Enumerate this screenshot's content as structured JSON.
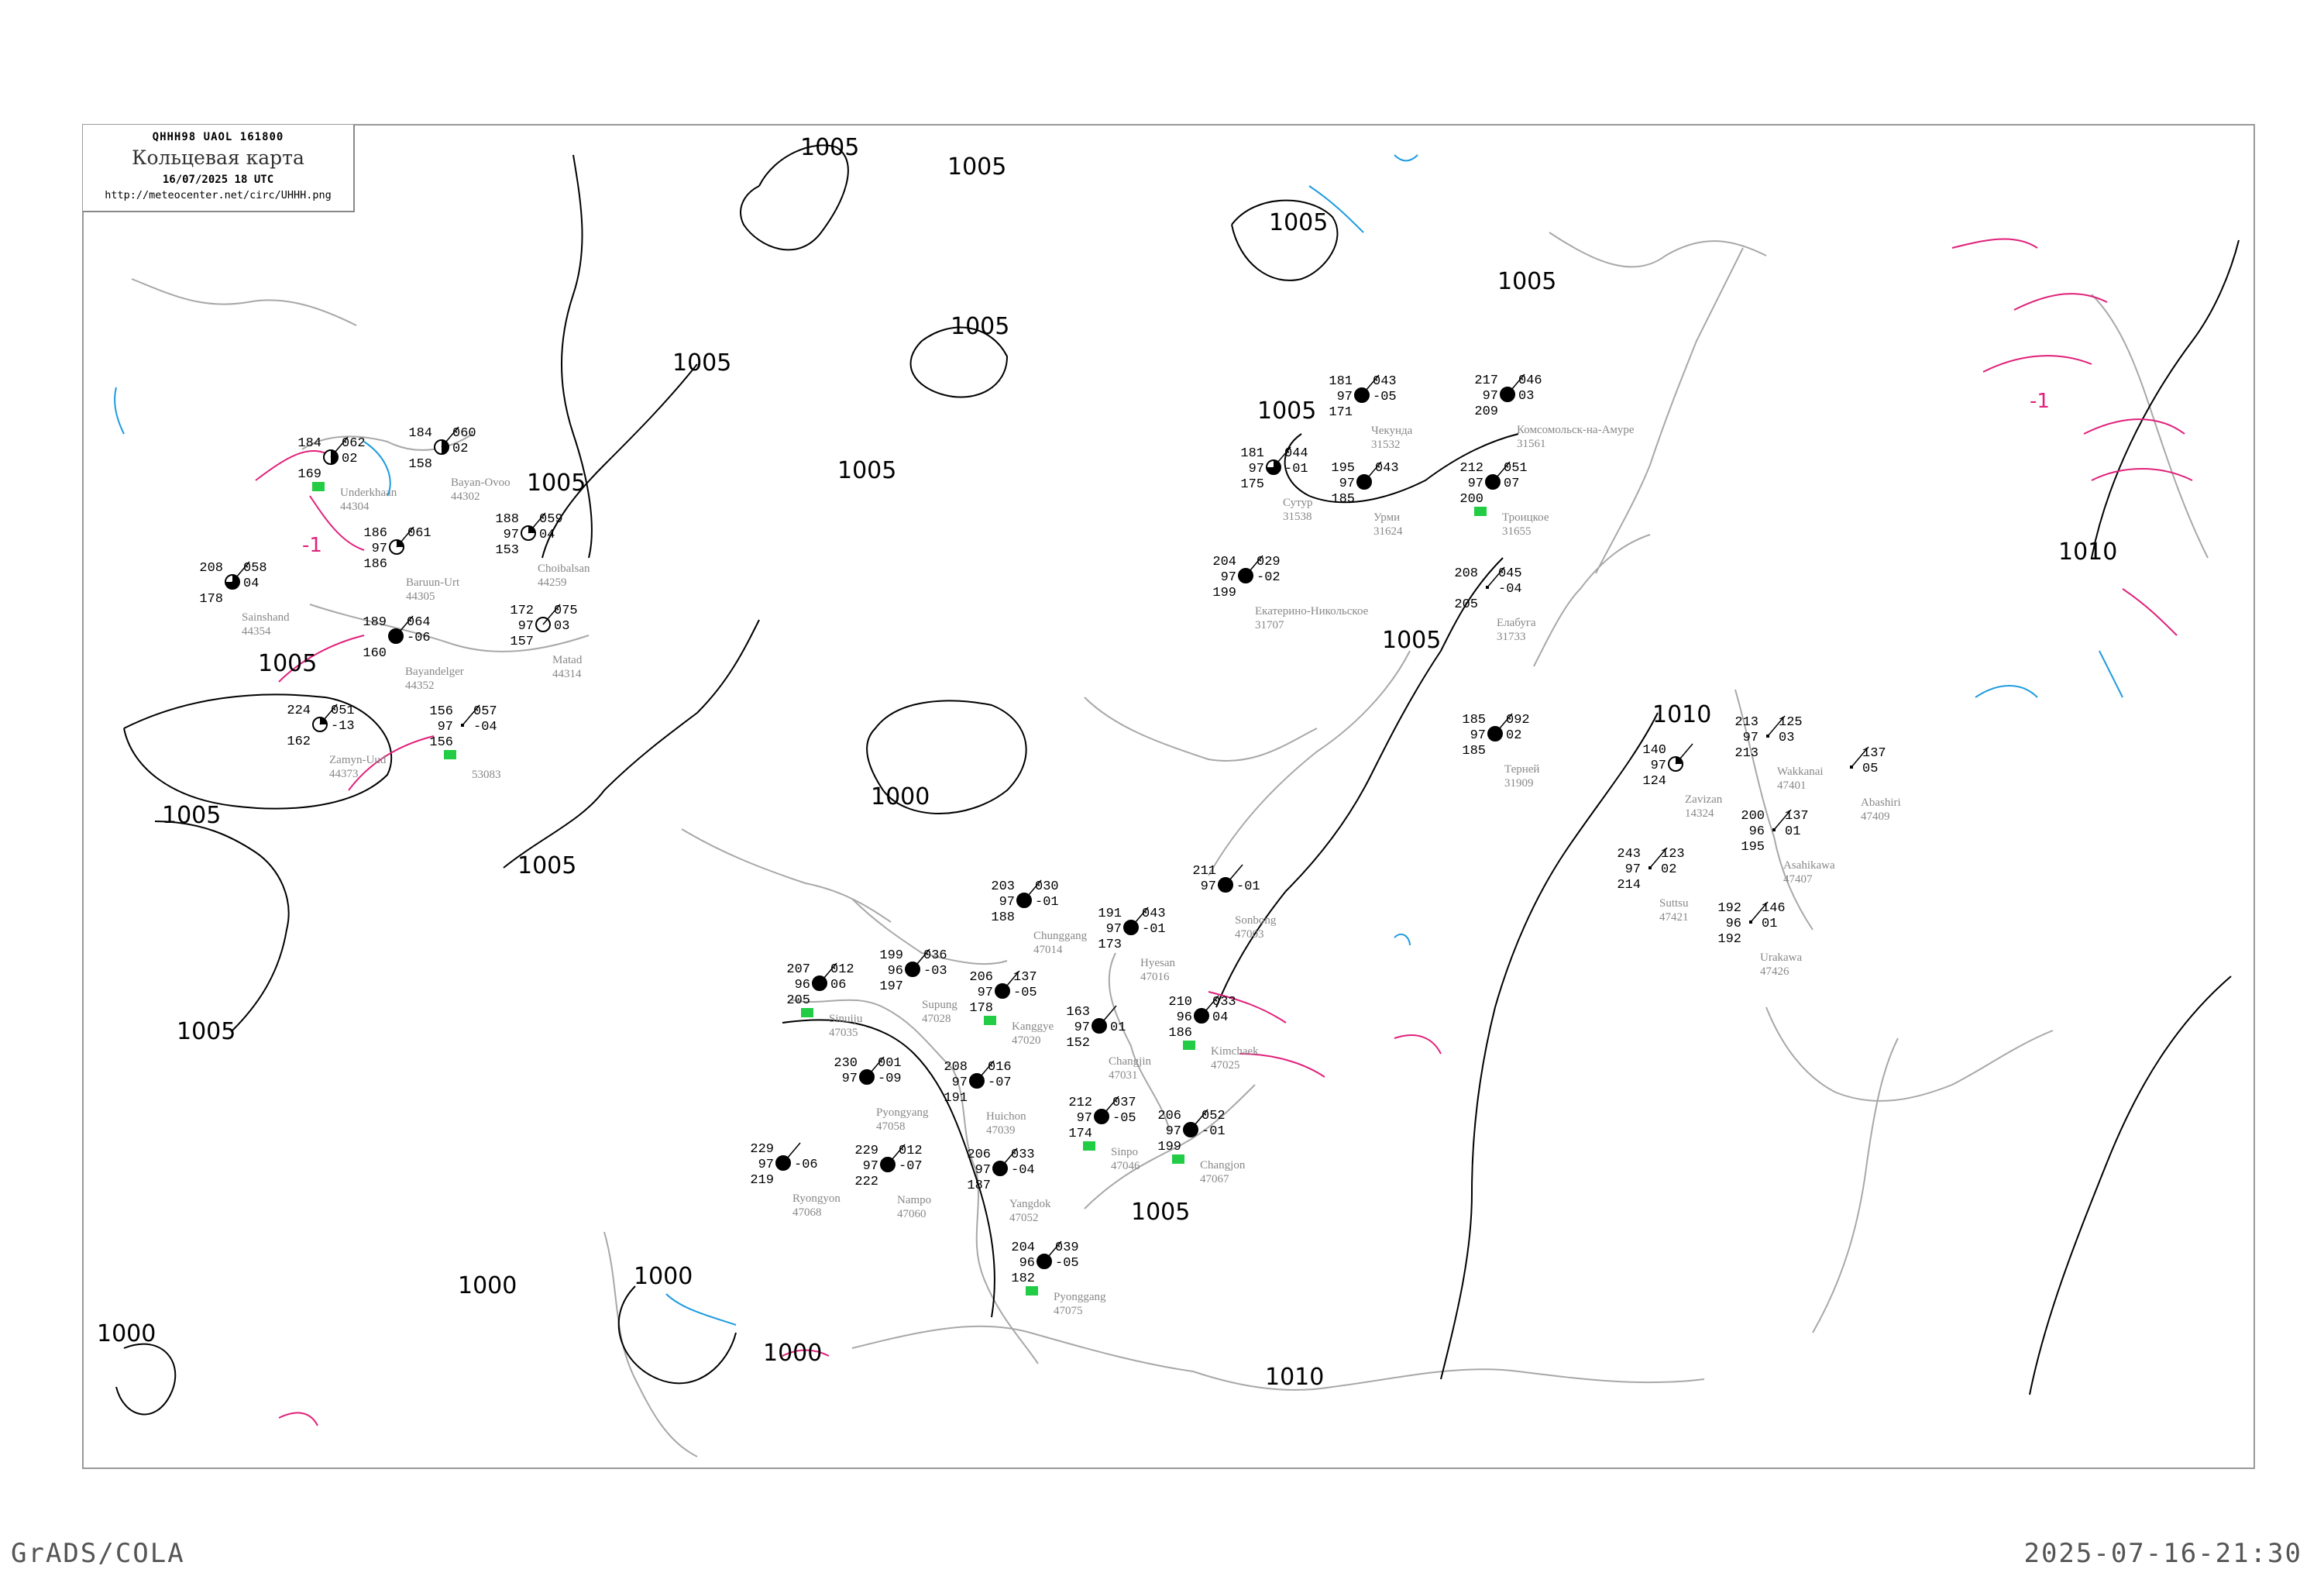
{
  "header": {
    "bulletin_code": "QHHH98   UAOL   161800",
    "title": "Кольцевая карта",
    "datetime": "16/07/2025 18 UTC",
    "url": "http://meteocenter.net/circ/UHHH.png"
  },
  "footer": {
    "software": "GrADS/COLA",
    "generated": "2025-07-16-21:30"
  },
  "colors": {
    "isobar": "#000000",
    "coastline": "#a0a0a0",
    "warm_isotherm": "#e0207a",
    "cold_isotherm": "#1e9be0",
    "precip_marker": "#22cc44",
    "fog_marker": "#ffff80"
  },
  "isobars": {
    "labels": [
      "1005",
      "1005",
      "1005",
      "1005",
      "1005",
      "1005",
      "1005",
      "1005",
      "1005",
      "1005",
      "1005",
      "1005",
      "1005",
      "1005",
      "1005",
      "1000",
      "1000",
      "1000",
      "1000",
      "1000",
      "1010",
      "1010",
      "1010"
    ]
  },
  "isotherm_labels": [
    "-1",
    "-1"
  ],
  "stations": [
    {
      "name": "Chunggang",
      "id": "47014",
      "t": "203",
      "vis": "97",
      "td": "188",
      "pres": "030",
      "tend": "-01",
      "cloud": 1,
      "precip": false
    },
    {
      "name": "Hyesan",
      "id": "47016",
      "t": "191",
      "vis": "97",
      "td": "173",
      "pres": "043",
      "tend": "-01",
      "cloud": 1,
      "precip": false
    },
    {
      "name": "Kanggye",
      "id": "47020",
      "t": "206",
      "vis": "97",
      "td": "178",
      "pres": "137",
      "tend": "-05",
      "cloud": 1,
      "precip": true
    },
    {
      "name": "Supung",
      "id": "47028",
      "t": "199",
      "vis": "96",
      "td": "197",
      "pres": "036",
      "tend": "-03",
      "cloud": 1,
      "precip": false
    },
    {
      "name": "Sinuiju",
      "id": "47035",
      "t": "207",
      "vis": "96",
      "td": "205",
      "pres": "012",
      "tend": "06",
      "cloud": 1,
      "precip": true
    },
    {
      "name": "Huichon",
      "id": "47039",
      "t": "208",
      "vis": "97",
      "td": "191",
      "pres": "016",
      "tend": "-07",
      "cloud": 1,
      "precip": false
    },
    {
      "name": "Changjin",
      "id": "47031",
      "t": "163",
      "vis": "97",
      "td": "152",
      "pres": "",
      "tend": "01",
      "cloud": 1,
      "precip": false
    },
    {
      "name": "Kimchaek",
      "id": "47025",
      "t": "210",
      "vis": "96",
      "td": "186",
      "pres": "033",
      "tend": "04",
      "cloud": 1,
      "precip": true
    },
    {
      "name": "Sinpo",
      "id": "47046",
      "t": "212",
      "vis": "97",
      "td": "174",
      "pres": "037",
      "tend": "-05",
      "cloud": 1,
      "precip": true
    },
    {
      "name": "Pyongyang",
      "id": "47058",
      "t": "230",
      "vis": "97",
      "td": "",
      "pres": "001",
      "tend": "-09",
      "cloud": 1,
      "precip": false
    },
    {
      "name": "Yangdok",
      "id": "47052",
      "t": "206",
      "vis": "97",
      "td": "187",
      "pres": "033",
      "tend": "-04",
      "cloud": 1,
      "precip": false
    },
    {
      "name": "Nampo",
      "id": "47060",
      "t": "229",
      "vis": "97",
      "td": "222",
      "pres": "012",
      "tend": "-07",
      "cloud": 1,
      "precip": false
    },
    {
      "name": "Ryongyon",
      "id": "47068",
      "t": "229",
      "vis": "97",
      "td": "219",
      "pres": "",
      "tend": "-06",
      "cloud": 1,
      "precip": false
    },
    {
      "name": "Pyonggang",
      "id": "47075",
      "t": "204",
      "vis": "96",
      "td": "182",
      "pres": "039",
      "tend": "-05",
      "cloud": 1,
      "precip": true
    },
    {
      "name": "Changjon",
      "id": "47067",
      "t": "206",
      "vis": "97",
      "td": "199",
      "pres": "052",
      "tend": "-01",
      "cloud": 1,
      "precip": true
    },
    {
      "name": "Sonbong",
      "id": "47003",
      "t": "211",
      "vis": "97",
      "td": "",
      "pres": "",
      "tend": "-01",
      "cloud": 1,
      "precip": false
    },
    {
      "name": "Чекунда",
      "id": "31532",
      "t": "181",
      "vis": "97",
      "td": "171",
      "pres": "043",
      "tend": "-05",
      "cloud": 1,
      "precip": false
    },
    {
      "name": "Сутур",
      "id": "31538",
      "t": "181",
      "vis": "97",
      "td": "175",
      "pres": "044",
      "tend": "-01",
      "cloud": 0.75,
      "precip": false
    },
    {
      "name": "Урми",
      "id": "31624",
      "t": "195",
      "vis": "97",
      "td": "185",
      "pres": "043",
      "tend": "",
      "cloud": 1,
      "precip": false
    },
    {
      "name": "Троицкое",
      "id": "31655",
      "t": "212",
      "vis": "97",
      "td": "200",
      "pres": "051",
      "tend": "07",
      "cloud": 1,
      "precip": true
    },
    {
      "name": "Екатерино-Никольское",
      "id": "31707",
      "t": "204",
      "vis": "97",
      "td": "199",
      "pres": "029",
      "tend": "-02",
      "cloud": 1,
      "precip": false
    },
    {
      "name": "Комсомольск-на-Амуре",
      "id": "31561",
      "t": "217",
      "vis": "97",
      "td": "209",
      "pres": "046",
      "tend": "03",
      "cloud": 1,
      "precip": false
    },
    {
      "name": "Елабуга",
      "id": "31733",
      "t": "208",
      "vis": "",
      "td": "205",
      "pres": "045",
      "tend": "-04",
      "cloud": -1,
      "precip": false
    },
    {
      "name": "Терней",
      "id": "31909",
      "t": "185",
      "vis": "97",
      "td": "185",
      "pres": "092",
      "tend": "02",
      "cloud": 1,
      "precip": false
    },
    {
      "name": "Zavizan",
      "id": "14324",
      "t": "140",
      "vis": "97",
      "td": "124",
      "pres": "",
      "tend": "",
      "cloud": 0.25,
      "precip": false
    },
    {
      "name": "Wakkanai",
      "id": "47401",
      "t": "213",
      "vis": "97",
      "td": "213",
      "pres": "125",
      "tend": "03",
      "cloud": -1,
      "precip": false
    },
    {
      "name": "Asahikawa",
      "id": "47407",
      "t": "200",
      "vis": "96",
      "td": "195",
      "pres": "137",
      "tend": "01",
      "cloud": -1,
      "precip": false
    },
    {
      "name": "Abashiri",
      "id": "47409",
      "t": "",
      "vis": "",
      "td": "",
      "pres": "137",
      "tend": "05",
      "cloud": -1,
      "precip": false
    },
    {
      "name": "Urakawa",
      "id": "47426",
      "t": "192",
      "vis": "96",
      "td": "192",
      "pres": "146",
      "tend": "01",
      "cloud": -1,
      "precip": false
    },
    {
      "name": "Suttsu",
      "id": "47421",
      "t": "243",
      "vis": "97",
      "td": "214",
      "pres": "123",
      "tend": "02",
      "cloud": -1,
      "precip": false
    },
    {
      "name": "Underkhaan",
      "id": "44304",
      "t": "184",
      "vis": "",
      "td": "169",
      "pres": "062",
      "tend": "02",
      "cloud": 0.5,
      "precip": true
    },
    {
      "name": "Bayan-Ovoo",
      "id": "44302",
      "t": "184",
      "vis": "",
      "td": "158",
      "pres": "060",
      "tend": "02",
      "cloud": 0.5,
      "precip": false
    },
    {
      "name": "Choibalsan",
      "id": "44259",
      "t": "188",
      "vis": "97",
      "td": "153",
      "pres": "059",
      "tend": "04",
      "cloud": 0.25,
      "precip": false
    },
    {
      "name": "Baruun-Urt",
      "id": "44305",
      "t": "186",
      "vis": "97",
      "td": "186",
      "pres": "061",
      "tend": "",
      "cloud": 0.25,
      "precip": false
    },
    {
      "name": "Matad",
      "id": "44314",
      "t": "172",
      "vis": "97",
      "td": "157",
      "pres": "075",
      "tend": "03",
      "cloud": 0,
      "precip": false
    },
    {
      "name": "Sainshand",
      "id": "44354",
      "t": "208",
      "vis": "",
      "td": "178",
      "pres": "058",
      "tend": "04",
      "cloud": 0.75,
      "precip": false
    },
    {
      "name": "Bayandelger",
      "id": "44352",
      "t": "189",
      "vis": "",
      "td": "160",
      "pres": "064",
      "tend": "-06",
      "cloud": 1,
      "precip": false
    },
    {
      "name": "Zamyn-Uud",
      "id": "44373",
      "t": "224",
      "vis": "",
      "td": "162",
      "pres": "051",
      "tend": "-13",
      "cloud": 0.25,
      "precip": false
    },
    {
      "name": "",
      "id": "53083",
      "t": "156",
      "vis": "97",
      "td": "156",
      "pres": "057",
      "tend": "-04",
      "cloud": -1,
      "precip": true
    }
  ]
}
